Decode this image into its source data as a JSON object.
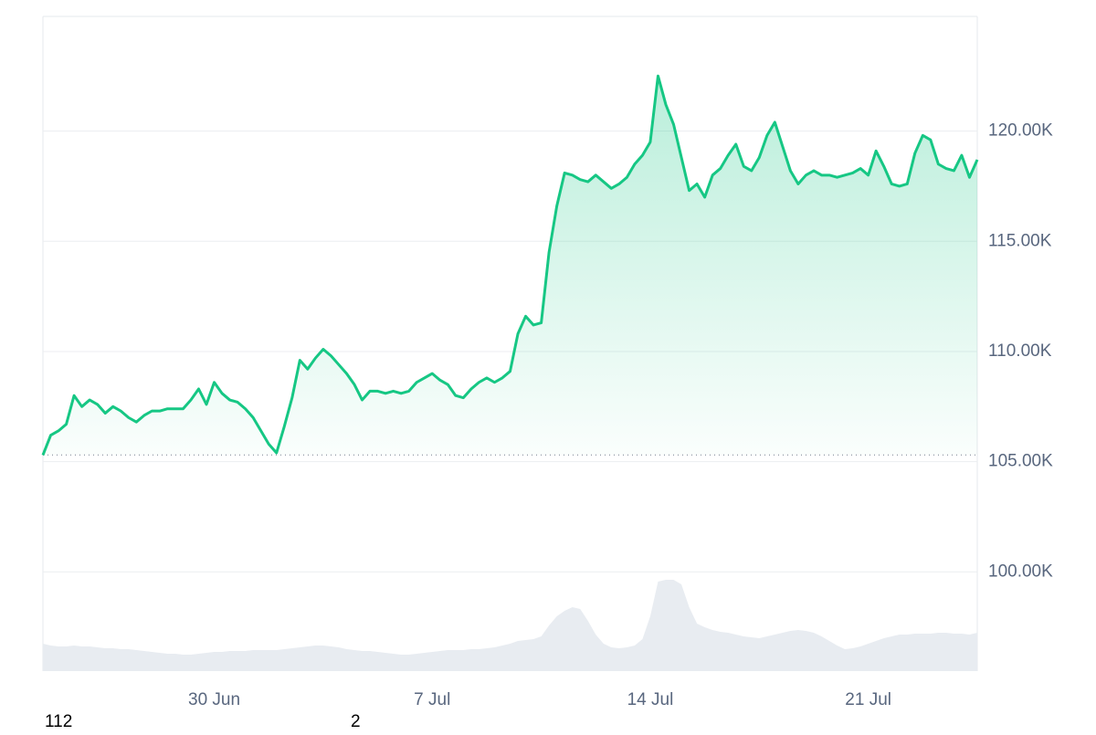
{
  "chart_data": {
    "type": "line",
    "categories": [
      null,
      null,
      null,
      null,
      null,
      null,
      null,
      null,
      null,
      null,
      null,
      null,
      null,
      null,
      null,
      null,
      null,
      null,
      null,
      null,
      null,
      null,
      "30 Jun",
      null,
      null,
      null,
      null,
      null,
      null,
      null,
      null,
      null,
      null,
      null,
      null,
      null,
      null,
      null,
      null,
      null,
      null,
      null,
      null,
      null,
      null,
      null,
      null,
      null,
      null,
      null,
      "7 Jul",
      null,
      null,
      null,
      null,
      null,
      null,
      null,
      null,
      null,
      null,
      null,
      null,
      null,
      null,
      null,
      null,
      null,
      null,
      null,
      null,
      null,
      null,
      null,
      null,
      null,
      null,
      null,
      "14 Jul",
      null,
      null,
      null,
      null,
      null,
      null,
      null,
      null,
      null,
      null,
      null,
      null,
      null,
      null,
      null,
      null,
      null,
      null,
      null,
      null,
      null,
      null,
      null,
      null,
      null,
      null,
      null,
      "21 Jul",
      null,
      null,
      null,
      null,
      null,
      null,
      null,
      null,
      null,
      null,
      null,
      null,
      null,
      null
    ],
    "series": [
      {
        "color": "#16c784",
        "values": [
          105300,
          106200,
          106400,
          106700,
          108000,
          107500,
          107800,
          107600,
          107200,
          107500,
          107300,
          107000,
          106800,
          107100,
          107300,
          107300,
          107400,
          107400,
          107400,
          107800,
          108300,
          107600,
          108600,
          108100,
          107800,
          107700,
          107400,
          107000,
          106400,
          105800,
          105400,
          106600,
          107900,
          109600,
          109200,
          109700,
          110100,
          109800,
          109400,
          109000,
          108500,
          107800,
          108200,
          108200,
          108100,
          108200,
          108100,
          108200,
          108600,
          108800,
          109000,
          108700,
          108500,
          108000,
          107900,
          108300,
          108600,
          108800,
          108600,
          108800,
          109100,
          110800,
          111600,
          111200,
          111300,
          114500,
          116600,
          118100,
          118000,
          117800,
          117700,
          118000,
          117700,
          117400,
          117600,
          117900,
          118500,
          118900,
          119500,
          122500,
          121200,
          120300,
          118800,
          117300,
          117600,
          117000,
          118000,
          118300,
          118900,
          119400,
          118400,
          118200,
          118800,
          119800,
          120400,
          119300,
          118200,
          117600,
          118000,
          118200,
          118000,
          118000,
          117900,
          118000,
          118100,
          118300,
          118000,
          119100,
          118400,
          117600,
          117500,
          117600,
          119000,
          119800,
          119600,
          118500,
          118300,
          118200,
          118900,
          117900,
          118700
        ]
      },
      {
        "color": "#e8ecf1",
        "axis": "y2",
        "values": [
          30,
          28,
          27,
          27,
          28,
          27,
          27,
          26,
          25,
          25,
          24,
          24,
          23,
          22,
          21,
          20,
          19,
          19,
          18,
          18,
          19,
          20,
          21,
          21,
          22,
          22,
          22,
          23,
          23,
          23,
          23,
          24,
          25,
          26,
          27,
          28,
          28,
          27,
          26,
          24,
          23,
          22,
          22,
          21,
          20,
          19,
          18,
          18,
          19,
          20,
          21,
          22,
          23,
          23,
          23,
          24,
          24,
          25,
          26,
          28,
          30,
          33,
          34,
          35,
          38,
          50,
          60,
          66,
          70,
          68,
          55,
          40,
          30,
          26,
          25,
          26,
          28,
          35,
          60,
          98,
          100,
          100,
          95,
          70,
          52,
          48,
          45,
          43,
          42,
          40,
          38,
          37,
          36,
          38,
          40,
          42,
          44,
          45,
          44,
          42,
          38,
          33,
          28,
          24,
          25,
          27,
          30,
          33,
          36,
          38,
          40,
          40,
          41,
          41,
          41,
          42,
          42,
          41,
          41,
          40,
          42
        ]
      }
    ],
    "ylim": [
      95500,
      125200
    ],
    "yticks": [
      {
        "value": 100000,
        "label": "100.00K"
      },
      {
        "value": 105000,
        "label": "105.00K"
      },
      {
        "value": 110000,
        "label": "110.00K"
      },
      {
        "value": 115000,
        "label": "115.00K"
      },
      {
        "value": 120000,
        "label": "120.00K"
      }
    ],
    "y2lim": [
      0,
      717
    ],
    "grid": true,
    "annotations": [
      "112",
      "2"
    ]
  }
}
